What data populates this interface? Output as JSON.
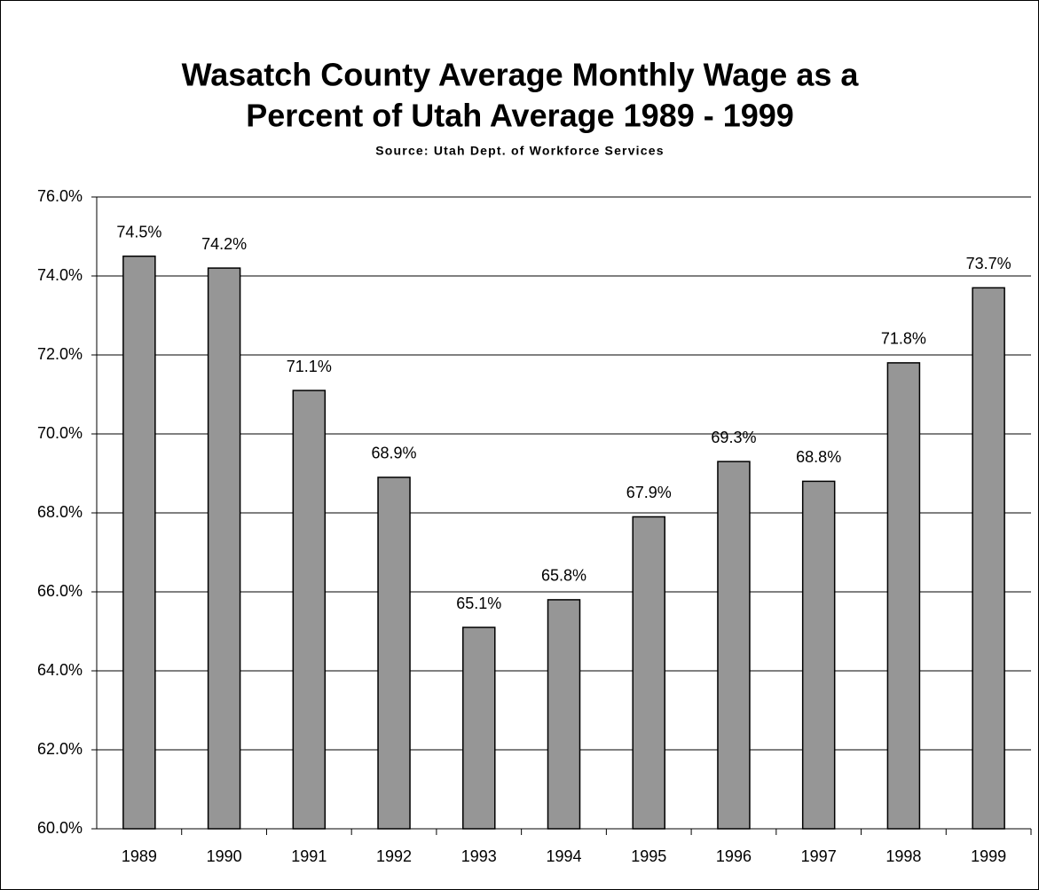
{
  "chart_data": {
    "type": "bar",
    "title": [
      "Wasatch County Average Monthly Wage as a",
      "Percent of Utah Average 1989 - 1999"
    ],
    "subtitle": "Source: Utah Dept. of Workforce Services",
    "categories": [
      "1989",
      "1990",
      "1991",
      "1992",
      "1993",
      "1994",
      "1995",
      "1996",
      "1997",
      "1998",
      "1999"
    ],
    "values": [
      74.5,
      74.2,
      71.1,
      68.9,
      65.1,
      65.8,
      67.9,
      69.3,
      68.8,
      71.8,
      73.7
    ],
    "value_labels": [
      "74.5%",
      "74.2%",
      "71.1%",
      "68.9%",
      "65.1%",
      "65.8%",
      "67.9%",
      "69.3%",
      "68.8%",
      "71.8%",
      "73.7%"
    ],
    "color": "#969696",
    "ylim": [
      60,
      76
    ],
    "yticks": [
      {
        "value": 60,
        "label": "60.0%"
      },
      {
        "value": 62,
        "label": "62.0%"
      },
      {
        "value": 64,
        "label": "64.0%"
      },
      {
        "value": 66,
        "label": "66.0%"
      },
      {
        "value": 68,
        "label": "68.0%"
      },
      {
        "value": 70,
        "label": "70.0%"
      },
      {
        "value": 72,
        "label": "72.0%"
      },
      {
        "value": 74,
        "label": "74.0%"
      },
      {
        "value": 76,
        "label": "76.0%"
      }
    ],
    "grid": true
  }
}
